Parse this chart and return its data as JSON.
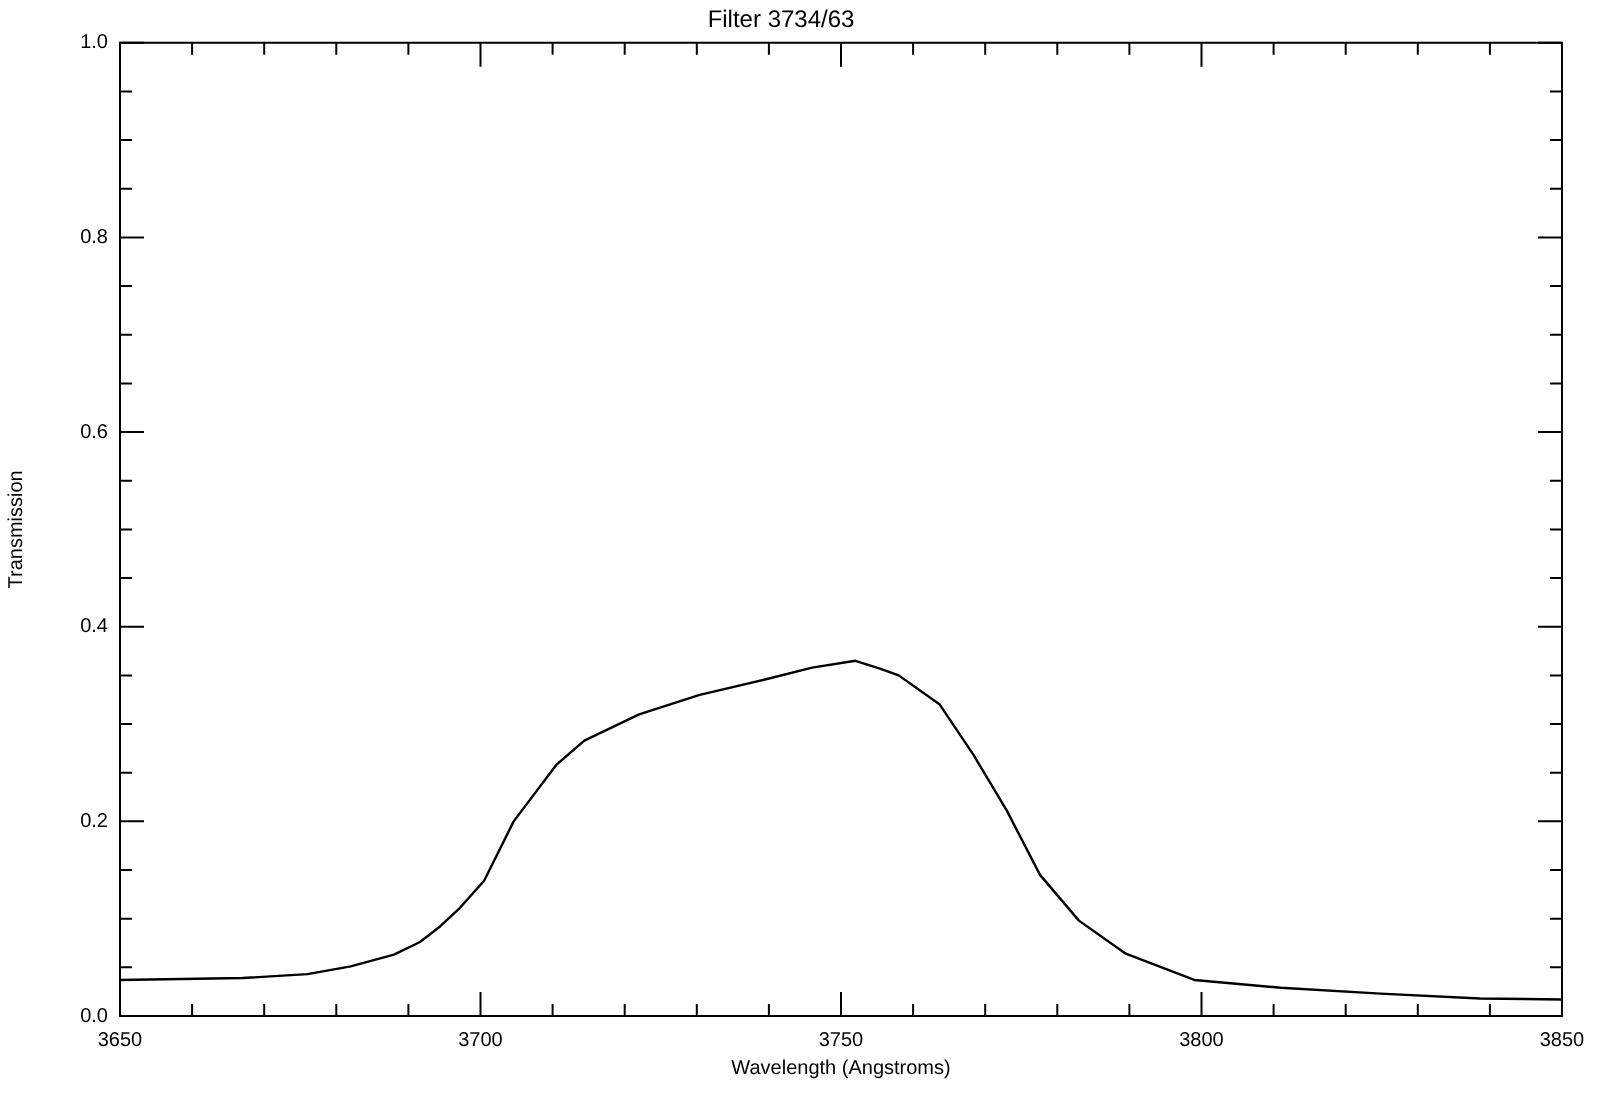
{
  "chart_data": {
    "type": "line",
    "title": "Filter 3734/63",
    "xlabel": "Wavelength (Angstroms)",
    "ylabel": "Transmission",
    "x": [
      3650,
      3667,
      3676,
      3682,
      3688,
      3691.6,
      3694.4,
      3697,
      3700.5,
      3704.6,
      3710.5,
      3714.4,
      3722,
      3730.4,
      3739.6,
      3746,
      3752,
      3755.4,
      3758,
      3763.7,
      3768.4,
      3773,
      3777.6,
      3783,
      3789.5,
      3799,
      3811,
      3824.8,
      3838.6,
      3850
    ],
    "series": [
      {
        "color": "#000000",
        "values": [
          0.037,
          0.039,
          0.043,
          0.051,
          0.063,
          0.076,
          0.092,
          0.11,
          0.139,
          0.2,
          0.258,
          0.283,
          0.31,
          0.33,
          0.346,
          0.358,
          0.365,
          0.357,
          0.35,
          0.32,
          0.268,
          0.211,
          0.145,
          0.098,
          0.064,
          0.037,
          0.029,
          0.023,
          0.018,
          0.017
        ]
      }
    ],
    "xlim": [
      3650,
      3850
    ],
    "xticks": [
      3650,
      {
        "value": 3660,
        "label": null
      },
      {
        "value": 3670,
        "label": null
      },
      {
        "value": 3680,
        "label": null
      },
      {
        "value": 3690,
        "label": null
      },
      3700,
      {
        "value": 3710,
        "label": null
      },
      {
        "value": 3720,
        "label": null
      },
      {
        "value": 3730,
        "label": null
      },
      {
        "value": 3740,
        "label": null
      },
      3750,
      {
        "value": 3760,
        "label": null
      },
      {
        "value": 3770,
        "label": null
      },
      {
        "value": 3780,
        "label": null
      },
      {
        "value": 3790,
        "label": null
      },
      3800,
      {
        "value": 3810,
        "label": null
      },
      {
        "value": 3820,
        "label": null
      },
      {
        "value": 3830,
        "label": null
      },
      {
        "value": 3840,
        "label": null
      },
      3850
    ],
    "ylim": [
      0,
      1
    ],
    "yticks": [
      {
        "value": 0,
        "label": "0.0"
      },
      {
        "value": 0.05,
        "label": null
      },
      {
        "value": 0.1,
        "label": null
      },
      {
        "value": 0.15,
        "label": null
      },
      {
        "value": 0.2,
        "label": "0.2"
      },
      {
        "value": 0.25,
        "label": null
      },
      {
        "value": 0.3,
        "label": null
      },
      {
        "value": 0.35,
        "label": null
      },
      {
        "value": 0.4,
        "label": "0.4"
      },
      {
        "value": 0.45,
        "label": null
      },
      {
        "value": 0.5,
        "label": null
      },
      {
        "value": 0.55,
        "label": null
      },
      {
        "value": 0.6,
        "label": "0.6"
      },
      {
        "value": 0.65,
        "label": null
      },
      {
        "value": 0.7,
        "label": null
      },
      {
        "value": 0.75,
        "label": null
      },
      {
        "value": 0.8,
        "label": "0.8"
      },
      {
        "value": 0.85,
        "label": null
      },
      {
        "value": 0.9,
        "label": null
      },
      {
        "value": 0.95,
        "label": null
      },
      {
        "value": 1,
        "label": "1.0"
      }
    ],
    "grid": false,
    "legend": false,
    "marker": "none",
    "line_style": "solid"
  }
}
